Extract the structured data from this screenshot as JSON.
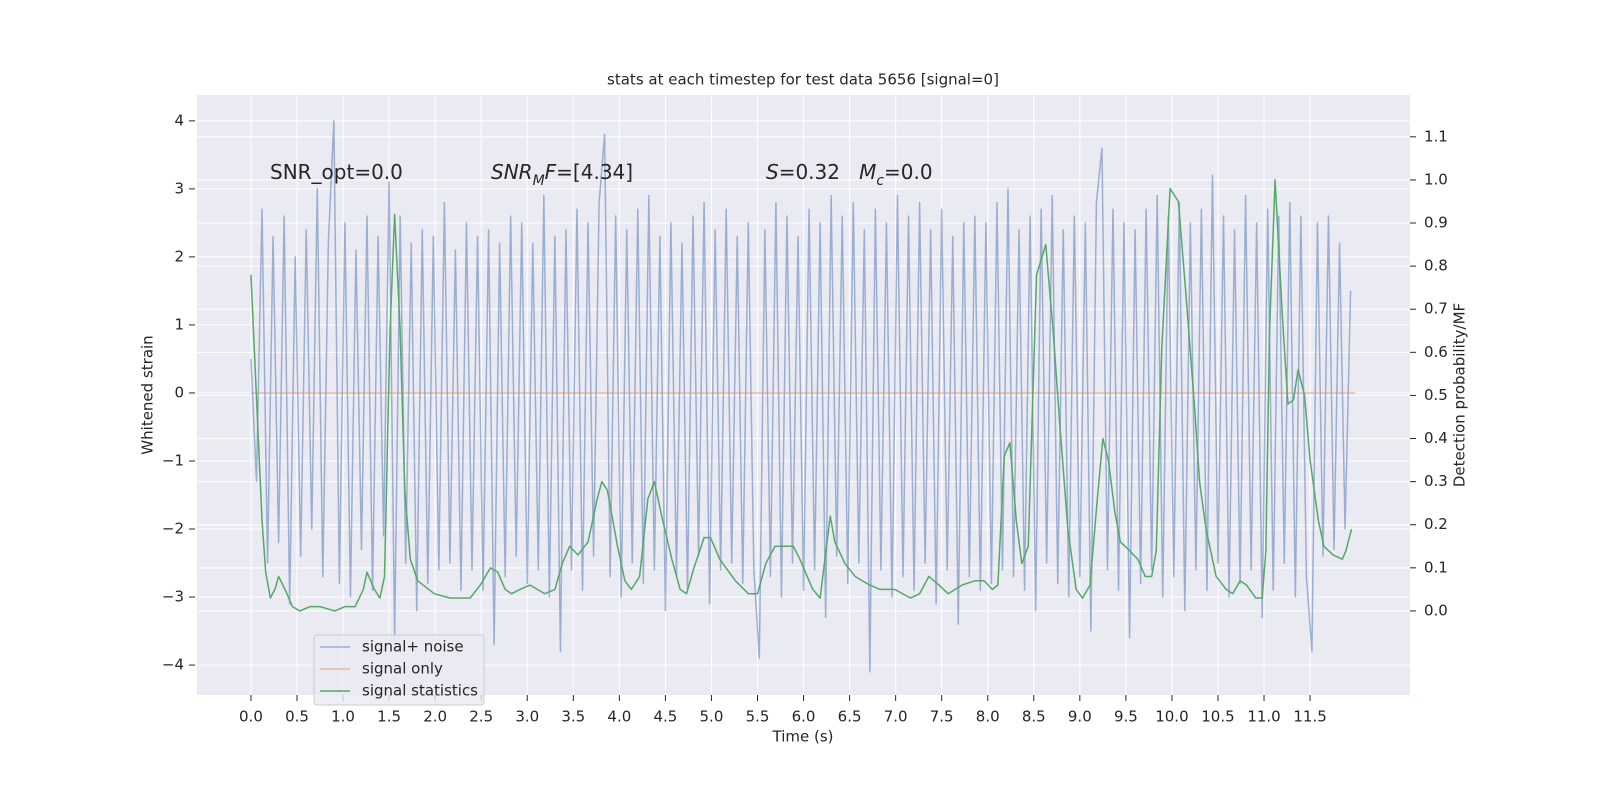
{
  "chart_data": {
    "type": "line",
    "title": "stats at each timestep for test data 5656 [signal=0]",
    "xlabel": "Time (s)",
    "ylabel": "Whitened strain",
    "y2label": "Detection probability/MF",
    "xlim": [
      -0.586,
      12.585
    ],
    "ylim": [
      -4.44,
      4.38
    ],
    "y2lim": [
      -0.195,
      1.197
    ],
    "xticks": [
      {
        "value": 0,
        "label": "0.0"
      },
      0.5,
      {
        "value": 1,
        "label": "1.0"
      },
      1.5,
      {
        "value": 2,
        "label": "2.0"
      },
      2.5,
      {
        "value": 3,
        "label": "3.0"
      },
      3.5,
      {
        "value": 4,
        "label": "4.0"
      },
      4.5,
      {
        "value": 5,
        "label": "5.0"
      },
      5.5,
      {
        "value": 6,
        "label": "6.0"
      },
      6.5,
      {
        "value": 7,
        "label": "7.0"
      },
      7.5,
      {
        "value": 8,
        "label": "8.0"
      },
      8.5,
      {
        "value": 9,
        "label": "9.0"
      },
      9.5,
      {
        "value": 10,
        "label": "10.0"
      },
      10.5,
      {
        "value": 11,
        "label": "11.0"
      },
      11.5
    ],
    "yticks": [
      {
        "value": -4,
        "label": "−4"
      },
      {
        "value": -3,
        "label": "−3"
      },
      {
        "value": -2,
        "label": "−2"
      },
      {
        "value": -1,
        "label": "−1"
      },
      0,
      1,
      2,
      3,
      4
    ],
    "y2ticks": [
      {
        "value": 0,
        "label": "0.0"
      },
      0.1,
      0.2,
      0.3,
      0.4,
      0.5,
      0.6,
      0.7,
      0.8,
      0.9,
      {
        "value": 1,
        "label": "1.0"
      },
      1.1
    ],
    "grid": true,
    "legend": "lower left",
    "annotations": [
      {
        "parts": [
          {
            "text": "SNR_opt=0.0"
          }
        ]
      },
      {
        "parts": [
          {
            "text": "SNR",
            "italic": true
          },
          {
            "text": "M",
            "italic": true,
            "sub": true
          },
          {
            "text": "F",
            "italic": true
          },
          {
            "text": "=[4.34]"
          }
        ]
      },
      {
        "parts": [
          {
            "text": "S",
            "italic": true
          },
          {
            "text": "=0.32   "
          },
          {
            "text": "M",
            "italic": true
          },
          {
            "text": "c",
            "italic": true,
            "sub": true
          },
          {
            "text": "=0.0"
          }
        ]
      }
    ],
    "series": [
      {
        "name": "signal+ noise",
        "color": "#4c72b0",
        "alpha": 0.5,
        "x": [
          0,
          0.06,
          0.12,
          0.18,
          0.24,
          0.3,
          0.36,
          0.42,
          0.48,
          0.54,
          0.6,
          0.66,
          0.72,
          0.78,
          0.84,
          0.9,
          0.96,
          1.02,
          1.08,
          1.14,
          1.2,
          1.26,
          1.32,
          1.38,
          1.44,
          1.5,
          1.56,
          1.62,
          1.68,
          1.74,
          1.8,
          1.86,
          1.92,
          1.98,
          2.04,
          2.1,
          2.16,
          2.22,
          2.28,
          2.34,
          2.4,
          2.46,
          2.52,
          2.58,
          2.64,
          2.7,
          2.76,
          2.82,
          2.88,
          2.94,
          3.0,
          3.06,
          3.12,
          3.18,
          3.24,
          3.3,
          3.36,
          3.42,
          3.48,
          3.54,
          3.6,
          3.66,
          3.72,
          3.78,
          3.84,
          3.9,
          3.96,
          4.02,
          4.08,
          4.14,
          4.2,
          4.26,
          4.32,
          4.38,
          4.44,
          4.5,
          4.56,
          4.62,
          4.68,
          4.74,
          4.8,
          4.86,
          4.92,
          4.98,
          5.04,
          5.1,
          5.16,
          5.22,
          5.28,
          5.34,
          5.4,
          5.46,
          5.52,
          5.58,
          5.64,
          5.7,
          5.76,
          5.82,
          5.88,
          5.94,
          6.0,
          6.06,
          6.12,
          6.18,
          6.24,
          6.3,
          6.36,
          6.42,
          6.48,
          6.54,
          6.6,
          6.66,
          6.72,
          6.78,
          6.84,
          6.9,
          6.96,
          7.02,
          7.08,
          7.14,
          7.2,
          7.26,
          7.32,
          7.38,
          7.44,
          7.5,
          7.56,
          7.62,
          7.68,
          7.74,
          7.8,
          7.86,
          7.92,
          7.98,
          8.04,
          8.1,
          8.16,
          8.22,
          8.28,
          8.34,
          8.4,
          8.46,
          8.52,
          8.58,
          8.64,
          8.7,
          8.76,
          8.82,
          8.88,
          8.94,
          9.0,
          9.06,
          9.12,
          9.18,
          9.24,
          9.3,
          9.36,
          9.42,
          9.48,
          9.54,
          9.6,
          9.66,
          9.72,
          9.78,
          9.84,
          9.9,
          9.96,
          10.02,
          10.08,
          10.14,
          10.2,
          10.26,
          10.32,
          10.38,
          10.44,
          10.5,
          10.56,
          10.62,
          10.68,
          10.74,
          10.8,
          10.86,
          10.92,
          10.98,
          11.04,
          11.1,
          11.16,
          11.22,
          11.28,
          11.34,
          11.4,
          11.46,
          11.52,
          11.58,
          11.64,
          11.7,
          11.76,
          11.82,
          11.88,
          11.94
        ],
        "values": [
          0.5,
          -1.3,
          2.7,
          -2.5,
          2.3,
          -2.2,
          2.6,
          -3.1,
          2.0,
          -2.4,
          2.4,
          -2.0,
          3.0,
          -2.7,
          2.2,
          4.0,
          -2.8,
          2.5,
          -3.0,
          2.1,
          -2.3,
          2.6,
          -2.9,
          2.3,
          -2.1,
          3.1,
          -3.6,
          2.6,
          -2.5,
          2.2,
          -3.2,
          2.4,
          -2.8,
          2.3,
          -2.6,
          2.8,
          -2.5,
          2.1,
          -2.9,
          2.5,
          -2.6,
          2.3,
          -2.9,
          2.4,
          -3.7,
          2.2,
          -2.7,
          2.6,
          -2.4,
          2.5,
          -2.8,
          2.2,
          -2.6,
          2.9,
          -3.0,
          2.3,
          -3.8,
          2.4,
          -2.6,
          2.7,
          -2.9,
          2.5,
          -2.4,
          2.8,
          3.8,
          -2.7,
          2.6,
          -3.0,
          2.4,
          -2.5,
          2.7,
          -2.8,
          2.9,
          -2.6,
          2.3,
          -3.2,
          2.5,
          -2.7,
          2.2,
          -2.9,
          2.6,
          -2.4,
          2.8,
          -3.1,
          2.4,
          -2.6,
          2.7,
          -2.5,
          2.3,
          -2.8,
          2.5,
          -2.6,
          -3.9,
          2.4,
          -2.7,
          2.8,
          -3.0,
          2.6,
          -2.5,
          2.3,
          -2.9,
          2.7,
          -2.6,
          2.5,
          -3.3,
          2.9,
          -2.4,
          2.6,
          -2.8,
          2.8,
          -2.5,
          2.4,
          -4.1,
          2.7,
          -2.6,
          2.5,
          -3.0,
          2.9,
          -2.7,
          2.6,
          -2.9,
          2.8,
          -2.5,
          2.4,
          -3.1,
          2.7,
          -2.6,
          2.3,
          -3.4,
          2.5,
          -2.7,
          2.6,
          -2.9,
          2.5,
          -2.8,
          2.8,
          -2.6,
          3.0,
          -2.7,
          2.4,
          -2.9,
          2.6,
          -3.2,
          2.7,
          -2.5,
          2.9,
          -2.8,
          2.4,
          -3.0,
          2.6,
          -2.7,
          2.5,
          -3.5,
          2.8,
          3.6,
          -2.6,
          2.7,
          -2.9,
          2.5,
          -3.6,
          2.4,
          -2.8,
          2.7,
          -2.6,
          2.9,
          -3.0,
          2.6,
          -2.7,
          2.8,
          -3.2,
          2.5,
          -2.6,
          2.7,
          -2.9,
          3.2,
          -2.5,
          2.6,
          -3.0,
          2.4,
          -2.8,
          2.9,
          -2.6,
          2.5,
          -3.3,
          2.7,
          -2.9,
          2.6,
          -2.5,
          2.8,
          -3.0,
          2.6,
          -2.7,
          -3.8,
          2.5,
          -2.4,
          2.6,
          -2.3,
          2.2,
          -2.0,
          1.5
        ]
      },
      {
        "name": "signal only",
        "color": "#dd8452",
        "alpha": 0.5,
        "x": [
          0,
          11.99
        ],
        "values": [
          0,
          0
        ]
      },
      {
        "name": "signal statistics",
        "color": "#55a868",
        "axis": "y2",
        "x": [
          0,
          0.12,
          0.16,
          0.21,
          0.26,
          0.3,
          0.37,
          0.45,
          0.53,
          0.64,
          0.75,
          0.91,
          1.02,
          1.13,
          1.22,
          1.26,
          1.34,
          1.4,
          1.45,
          1.51,
          1.56,
          1.62,
          1.67,
          1.73,
          1.81,
          1.99,
          2.16,
          2.38,
          2.49,
          2.6,
          2.68,
          2.76,
          2.83,
          2.92,
          3.03,
          3.19,
          3.3,
          3.38,
          3.46,
          3.55,
          3.66,
          3.76,
          3.81,
          3.87,
          3.98,
          4.06,
          4.13,
          4.22,
          4.31,
          4.38,
          4.46,
          4.57,
          4.66,
          4.73,
          4.81,
          4.92,
          4.99,
          5.09,
          5.26,
          5.4,
          5.5,
          5.59,
          5.69,
          5.81,
          5.89,
          5.96,
          6.1,
          6.18,
          6.29,
          6.34,
          6.45,
          6.56,
          6.72,
          6.83,
          6.99,
          7.16,
          7.26,
          7.36,
          7.47,
          7.57,
          7.72,
          7.86,
          7.96,
          8.05,
          8.11,
          8.18,
          8.24,
          8.31,
          8.37,
          8.44,
          8.53,
          8.63,
          8.71,
          8.78,
          8.87,
          8.96,
          9.03,
          9.11,
          9.19,
          9.25,
          9.31,
          9.38,
          9.44,
          9.54,
          9.63,
          9.71,
          9.78,
          9.83,
          9.89,
          9.98,
          10.07,
          10.15,
          10.24,
          10.3,
          10.37,
          10.48,
          10.59,
          10.66,
          10.74,
          10.81,
          10.91,
          10.98,
          11.02,
          11.06,
          11.12,
          11.2,
          11.26,
          11.32,
          11.37,
          11.44,
          11.5,
          11.59,
          11.65,
          11.75,
          11.85,
          11.89,
          11.95
        ],
        "values": [
          0.78,
          0.21,
          0.09,
          0.03,
          0.05,
          0.08,
          0.05,
          0.01,
          0.0,
          0.01,
          0.01,
          0.0,
          0.01,
          0.01,
          0.05,
          0.09,
          0.05,
          0.03,
          0.08,
          0.65,
          0.92,
          0.65,
          0.28,
          0.12,
          0.07,
          0.04,
          0.03,
          0.03,
          0.06,
          0.1,
          0.09,
          0.05,
          0.04,
          0.05,
          0.06,
          0.04,
          0.05,
          0.11,
          0.15,
          0.13,
          0.16,
          0.26,
          0.3,
          0.28,
          0.15,
          0.07,
          0.05,
          0.08,
          0.26,
          0.3,
          0.22,
          0.12,
          0.05,
          0.04,
          0.1,
          0.17,
          0.17,
          0.12,
          0.07,
          0.04,
          0.04,
          0.11,
          0.15,
          0.15,
          0.15,
          0.12,
          0.05,
          0.03,
          0.22,
          0.16,
          0.11,
          0.08,
          0.06,
          0.05,
          0.05,
          0.03,
          0.04,
          0.08,
          0.06,
          0.04,
          0.06,
          0.07,
          0.07,
          0.05,
          0.06,
          0.36,
          0.39,
          0.21,
          0.11,
          0.15,
          0.78,
          0.85,
          0.65,
          0.44,
          0.19,
          0.05,
          0.03,
          0.06,
          0.26,
          0.4,
          0.35,
          0.23,
          0.16,
          0.14,
          0.12,
          0.08,
          0.08,
          0.14,
          0.61,
          0.98,
          0.95,
          0.74,
          0.49,
          0.3,
          0.19,
          0.08,
          0.05,
          0.04,
          0.07,
          0.06,
          0.03,
          0.03,
          0.14,
          0.65,
          1.0,
          0.68,
          0.48,
          0.49,
          0.56,
          0.5,
          0.35,
          0.21,
          0.15,
          0.13,
          0.12,
          0.14,
          0.19
        ]
      }
    ]
  }
}
